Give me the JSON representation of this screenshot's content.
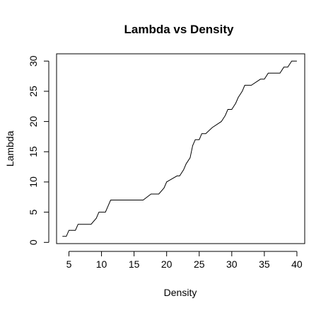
{
  "chart_data": {
    "type": "line",
    "title": "Lambda vs Density",
    "xlabel": "Density",
    "ylabel": "Lambda",
    "xlim": [
      3.1,
      41.2
    ],
    "ylim": [
      -0.2,
      31.2
    ],
    "xticks": [
      5,
      10,
      15,
      20,
      25,
      30,
      35,
      40
    ],
    "yticks": [
      0,
      5,
      10,
      15,
      20,
      25,
      30
    ],
    "grid": false,
    "line_style": "step",
    "series": [
      {
        "x": [
          4.0,
          4.6,
          5.0,
          6.0,
          6.4,
          8.4,
          9.2,
          9.6,
          10.6,
          11.0,
          11.4,
          16.4,
          17.6,
          18.8,
          19.6,
          20.0,
          21.6,
          22.0,
          22.6,
          23.0,
          23.6,
          24.0,
          24.4,
          25.0,
          25.4,
          26.0,
          27.0,
          28.4,
          29.0,
          29.4,
          30.0,
          30.6,
          31.0,
          31.6,
          32.0,
          32.6,
          33.0,
          34.4,
          35.0,
          35.6,
          37.4,
          38.0,
          38.6,
          39.2,
          39.6,
          40.0
        ],
        "y": [
          1,
          1,
          2,
          2,
          3,
          3,
          4,
          5,
          5,
          6,
          7,
          7,
          8,
          8,
          9,
          10,
          11,
          11,
          12,
          13,
          14,
          16,
          17,
          17,
          18,
          18,
          19,
          20,
          21,
          22,
          22,
          23,
          24,
          25,
          26,
          26,
          26,
          27,
          27,
          28,
          28,
          29,
          29,
          30,
          30,
          30
        ]
      }
    ]
  }
}
